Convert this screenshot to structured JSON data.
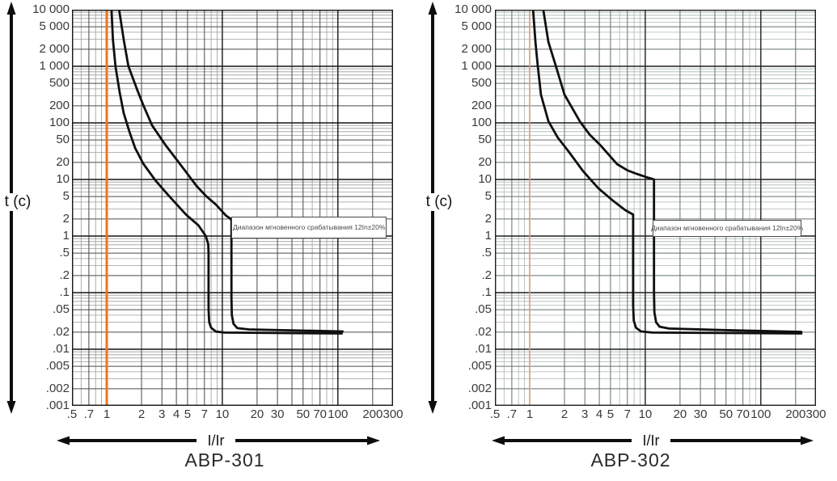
{
  "page": {
    "background": "#ffffff"
  },
  "chart_data": [
    {
      "type": "line",
      "title": "АВР-301",
      "x_axis_label": "I/Ir",
      "y_axis_label": "t (c)",
      "x_scale": "log",
      "y_scale": "log",
      "x_range": [
        0.5,
        300
      ],
      "y_range": [
        0.001,
        10000
      ],
      "grid": {
        "major_color": "#141414",
        "mid_color": "#4a4a4a",
        "minor_color": "#9b9b9b",
        "border_color": "#141414"
      },
      "reference_line": {
        "x": 1,
        "color": "#ee7519",
        "width": 3
      },
      "curve_color": "#0f0f0f",
      "annotation": "Диапазон мгновенного срабатывания 12In±20%",
      "annotation_box": {
        "x1": 12,
        "x2": 265,
        "t1": 2.2,
        "t2": 0.92
      },
      "x_ticks": [
        {
          "v": 0.5,
          "label": ".5"
        },
        {
          "v": 0.7,
          "label": ".7"
        },
        {
          "v": 1,
          "label": "1"
        },
        {
          "v": 2,
          "label": "2"
        },
        {
          "v": 3,
          "label": "3"
        },
        {
          "v": 4,
          "label": "4"
        },
        {
          "v": 5,
          "label": "5"
        },
        {
          "v": 7,
          "label": "7"
        },
        {
          "v": 10,
          "label": "10"
        },
        {
          "v": 20,
          "label": "20"
        },
        {
          "v": 30,
          "label": "30"
        },
        {
          "v": 50,
          "label": "50"
        },
        {
          "v": 70,
          "label": "70"
        },
        {
          "v": 100,
          "label": "100"
        },
        {
          "v": 200,
          "label": "200"
        },
        {
          "v": 300,
          "label": "300"
        }
      ],
      "y_ticks": [
        {
          "v": 10000,
          "label": "10 000"
        },
        {
          "v": 5000,
          "label": "5 000"
        },
        {
          "v": 2000,
          "label": "2 000"
        },
        {
          "v": 1000,
          "label": "1 000"
        },
        {
          "v": 500,
          "label": "500"
        },
        {
          "v": 200,
          "label": "200"
        },
        {
          "v": 100,
          "label": "100"
        },
        {
          "v": 50,
          "label": "50"
        },
        {
          "v": 20,
          "label": "20"
        },
        {
          "v": 10,
          "label": "10"
        },
        {
          "v": 5,
          "label": "5"
        },
        {
          "v": 2,
          "label": "2"
        },
        {
          "v": 1,
          "label": "1"
        },
        {
          "v": 0.5,
          "label": ".5"
        },
        {
          "v": 0.2,
          "label": ".2"
        },
        {
          "v": 0.1,
          "label": ".1"
        },
        {
          "v": 0.05,
          "label": ".05"
        },
        {
          "v": 0.02,
          "label": ".02"
        },
        {
          "v": 0.01,
          "label": ".01"
        },
        {
          "v": 0.005,
          "label": ".005"
        },
        {
          "v": 0.002,
          "label": ".002"
        },
        {
          "v": 0.001,
          "label": ".001"
        }
      ],
      "series": [
        {
          "name": "min-trip-curve",
          "points": [
            [
              1.1,
              10000
            ],
            [
              1.13,
              3000
            ],
            [
              1.19,
              1000
            ],
            [
              1.29,
              360
            ],
            [
              1.4,
              150
            ],
            [
              1.57,
              70
            ],
            [
              1.76,
              36
            ],
            [
              2.07,
              19
            ],
            [
              2.63,
              9.7
            ],
            [
              3.35,
              5.5
            ],
            [
              4.85,
              2.4
            ],
            [
              6.2,
              1.55
            ],
            [
              7.2,
              1.0
            ],
            [
              7.55,
              0.72
            ],
            [
              7.6,
              0.5
            ],
            [
              7.6,
              0.05
            ],
            [
              7.7,
              0.03
            ],
            [
              8.0,
              0.024
            ],
            [
              8.8,
              0.0205
            ],
            [
              10.5,
              0.0197
            ],
            [
              108,
              0.019
            ]
          ]
        },
        {
          "name": "max-trip-curve",
          "points": [
            [
              1.28,
              10000
            ],
            [
              1.4,
              3000
            ],
            [
              1.54,
              1000
            ],
            [
              1.84,
              375
            ],
            [
              2.06,
              210
            ],
            [
              2.47,
              90
            ],
            [
              3.24,
              40
            ],
            [
              4.12,
              21
            ],
            [
              5.0,
              12.5
            ],
            [
              5.97,
              7.7
            ],
            [
              7.3,
              5.0
            ],
            [
              8.8,
              3.6
            ],
            [
              10.8,
              2.28
            ],
            [
              11.7,
              2.05
            ],
            [
              12.0,
              1.9
            ],
            [
              12.0,
              0.08
            ],
            [
              12.1,
              0.04
            ],
            [
              12.5,
              0.028
            ],
            [
              13.5,
              0.0236
            ],
            [
              17,
              0.0224
            ],
            [
              110,
              0.0206
            ]
          ]
        }
      ]
    },
    {
      "type": "line",
      "title": "АВР-302",
      "x_axis_label": "I/Ir",
      "y_axis_label": "t (c)",
      "x_scale": "log",
      "y_scale": "log",
      "x_range": [
        0.5,
        300
      ],
      "y_range": [
        0.001,
        10000
      ],
      "grid": {
        "major_color": "#1f1f1f",
        "mid_color": "#63706f",
        "minor_color": "#aab5b4",
        "border_color": "#1f1f1f"
      },
      "reference_line": {
        "x": 1,
        "color": "#f4b789",
        "width": 1.4
      },
      "curve_color": "#0f0f0f",
      "annotation": "Диапазон мгновенного срабатывания 12In±20%",
      "annotation_box": {
        "x1": 11.6,
        "x2": 225,
        "t1": 1.9,
        "t2": 0.97
      },
      "x_ticks": [
        {
          "v": 0.5,
          "label": ".5"
        },
        {
          "v": 0.7,
          "label": ".7"
        },
        {
          "v": 1,
          "label": "1"
        },
        {
          "v": 2,
          "label": "2"
        },
        {
          "v": 3,
          "label": "3"
        },
        {
          "v": 4,
          "label": "4"
        },
        {
          "v": 5,
          "label": "5"
        },
        {
          "v": 7,
          "label": "7"
        },
        {
          "v": 10,
          "label": "10"
        },
        {
          "v": 20,
          "label": "20"
        },
        {
          "v": 30,
          "label": "30"
        },
        {
          "v": 50,
          "label": "50"
        },
        {
          "v": 70,
          "label": "70"
        },
        {
          "v": 100,
          "label": "100"
        },
        {
          "v": 200,
          "label": "200"
        },
        {
          "v": 300,
          "label": "300"
        }
      ],
      "y_ticks": [
        {
          "v": 10000,
          "label": "10 000"
        },
        {
          "v": 5000,
          "label": "5 000"
        },
        {
          "v": 2000,
          "label": "2 000"
        },
        {
          "v": 1000,
          "label": "1 000"
        },
        {
          "v": 500,
          "label": "500"
        },
        {
          "v": 200,
          "label": "200"
        },
        {
          "v": 100,
          "label": "100"
        },
        {
          "v": 50,
          "label": "50"
        },
        {
          "v": 20,
          "label": "20"
        },
        {
          "v": 10,
          "label": "10"
        },
        {
          "v": 5,
          "label": "5"
        },
        {
          "v": 2,
          "label": "2"
        },
        {
          "v": 1,
          "label": "1"
        },
        {
          "v": 0.5,
          "label": ".5"
        },
        {
          "v": 0.2,
          "label": ".2"
        },
        {
          "v": 0.1,
          "label": ".1"
        },
        {
          "v": 0.05,
          "label": ".05"
        },
        {
          "v": 0.02,
          "label": ".02"
        },
        {
          "v": 0.01,
          "label": ".01"
        },
        {
          "v": 0.005,
          "label": ".005"
        },
        {
          "v": 0.002,
          "label": ".002"
        },
        {
          "v": 0.001,
          "label": ".001"
        }
      ],
      "series": [
        {
          "name": "min-trip-curve",
          "points": [
            [
              1.07,
              10000
            ],
            [
              1.12,
              2700
            ],
            [
              1.17,
              1070
            ],
            [
              1.25,
              316
            ],
            [
              1.45,
              107
            ],
            [
              1.75,
              55
            ],
            [
              2.16,
              31.6
            ],
            [
              2.9,
              14
            ],
            [
              3.92,
              7.0
            ],
            [
              5.2,
              4.3
            ],
            [
              6.7,
              2.87
            ],
            [
              7.5,
              2.52
            ],
            [
              7.85,
              2.4
            ],
            [
              7.85,
              0.06
            ],
            [
              7.95,
              0.032
            ],
            [
              8.3,
              0.024
            ],
            [
              9.2,
              0.0206
            ],
            [
              11.5,
              0.0197
            ],
            [
              224,
              0.019
            ]
          ]
        },
        {
          "name": "max-trip-curve",
          "points": [
            [
              1.31,
              10000
            ],
            [
              1.45,
              2700
            ],
            [
              1.67,
              1070
            ],
            [
              2.0,
              316
            ],
            [
              2.71,
              107
            ],
            [
              3.3,
              62
            ],
            [
              4.11,
              40
            ],
            [
              5.7,
              18.7
            ],
            [
              7.0,
              14.5
            ],
            [
              8.4,
              12.6
            ],
            [
              10.2,
              11
            ],
            [
              11.4,
              10.3
            ],
            [
              11.9,
              10.0
            ],
            [
              11.9,
              0.1
            ],
            [
              12.0,
              0.045
            ],
            [
              12.4,
              0.03
            ],
            [
              13.3,
              0.025
            ],
            [
              16,
              0.0232
            ],
            [
              60,
              0.0215
            ],
            [
              224,
              0.0203
            ]
          ]
        }
      ]
    }
  ]
}
